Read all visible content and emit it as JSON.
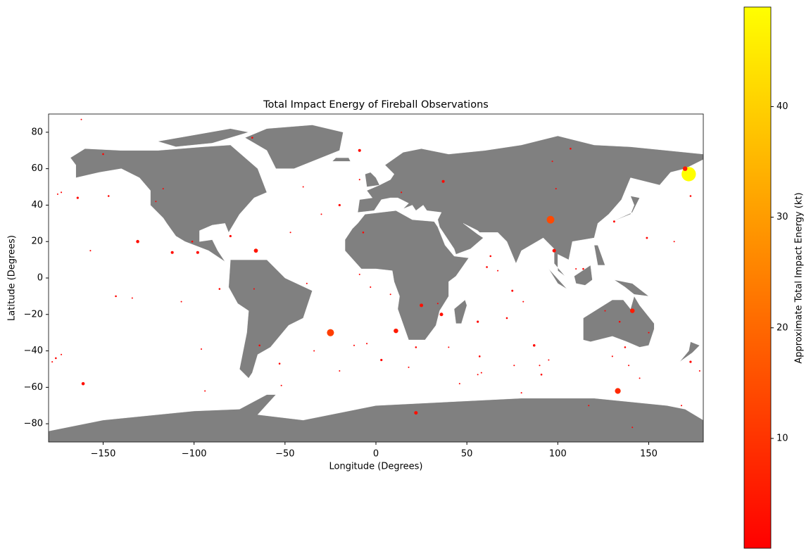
{
  "chart_data": {
    "type": "scatter",
    "title": "Total Impact Energy of Fireball Observations",
    "xlabel": "Longitude (Degrees)",
    "ylabel": "Latitude (Degrees)",
    "xlim": [
      -180,
      180
    ],
    "ylim": [
      -90,
      90
    ],
    "xticks": [
      {
        "value": -150,
        "label": "−150"
      },
      {
        "value": -100,
        "label": "−100"
      },
      {
        "value": -50,
        "label": "−50"
      },
      0,
      50,
      100,
      150
    ],
    "yticks": [
      {
        "value": -80,
        "label": "−80"
      },
      {
        "value": -60,
        "label": "−60"
      },
      {
        "value": -40,
        "label": "−40"
      },
      {
        "value": -20,
        "label": "−20"
      },
      0,
      20,
      40,
      60,
      80
    ],
    "colorbar": {
      "label": "Approximate Total Impact Energy (kt)",
      "clim": [
        0.07,
        49
      ],
      "ticks": [
        10,
        20,
        30,
        40
      ],
      "colormap": [
        "#ff0000",
        "#ffff00"
      ]
    },
    "x": [
      172,
      96,
      -25,
      133,
      170,
      141,
      11,
      -66,
      22,
      25,
      36,
      98,
      -161,
      -131,
      -98,
      -112,
      -9,
      37,
      87,
      -80,
      -20,
      173,
      -164,
      -68,
      -117,
      -150,
      -147,
      -176,
      -178,
      -173,
      -175,
      -173,
      -157,
      -143,
      -134,
      -96,
      -94,
      -86,
      -64,
      -53,
      -52,
      -38,
      -34,
      -20,
      -12,
      -5,
      3,
      -7,
      -9,
      -9,
      -3,
      8,
      14,
      22,
      18,
      40,
      46,
      56,
      57,
      58,
      61,
      63,
      67,
      72,
      75,
      76,
      80,
      81,
      90,
      91,
      95,
      97,
      99,
      107,
      110,
      114,
      117,
      126,
      130,
      131,
      134,
      137,
      139,
      141,
      145,
      149,
      150,
      164,
      168,
      173,
      178,
      -162,
      -107,
      -121,
      -101,
      -67,
      -47,
      -40,
      -30,
      34,
      56
    ],
    "y": [
      57,
      32,
      -30,
      -62,
      60,
      -18,
      -29,
      15,
      -74,
      -15,
      -20,
      15,
      -58,
      20,
      14,
      14,
      70,
      53,
      -37,
      23,
      40,
      -46,
      44,
      77,
      49,
      68,
      45,
      -44,
      -46,
      -42,
      46,
      47,
      15,
      -10,
      -11,
      -39,
      -62,
      -6,
      -37,
      -47,
      -59,
      -3,
      -40,
      -51,
      -37,
      -36,
      -45,
      25,
      54,
      2,
      -5,
      -9,
      47,
      -38,
      -49,
      -38,
      -58,
      -24,
      -43,
      -52,
      6,
      12,
      4,
      -22,
      -7,
      -48,
      -63,
      -13,
      -48,
      -53,
      -45,
      64,
      49,
      71,
      5,
      5,
      -70,
      -18,
      -43,
      31,
      -24,
      -38,
      -48,
      -82,
      -55,
      22,
      -30,
      20,
      -70,
      45,
      -51,
      87,
      -13,
      42,
      20,
      -6,
      25,
      50,
      35,
      -14,
      -53
    ],
    "values": [
      49,
      14,
      12,
      8,
      5,
      5,
      5,
      4,
      3,
      3,
      3,
      3,
      2.5,
      2.5,
      2,
      2,
      2,
      2,
      1.5,
      1.2,
      1.2,
      1.2,
      1.2,
      0.8,
      0.3,
      0.8,
      0.8,
      0.8,
      0.5,
      0.5,
      0.5,
      0.5,
      0.5,
      0.8,
      0.3,
      0.5,
      0.5,
      0.8,
      0.8,
      0.8,
      0.5,
      0.5,
      0.3,
      0.3,
      0.5,
      0.5,
      1.2,
      0.8,
      0.5,
      0.3,
      0.5,
      0.3,
      0.5,
      0.8,
      0.5,
      0.3,
      0.3,
      1.2,
      0.8,
      0.5,
      0.8,
      0.8,
      0.5,
      0.8,
      1,
      0.5,
      0.5,
      0.3,
      0.5,
      0.8,
      0.3,
      0.3,
      0.5,
      0.8,
      0.5,
      0.8,
      0.5,
      0.3,
      0.5,
      1,
      0.8,
      0.8,
      0.5,
      0.3,
      0.3,
      1,
      0.5,
      0.3,
      0.5,
      0.8,
      0.5,
      0.3,
      0.3,
      0.3,
      0.8,
      0.5,
      0.3,
      0.3,
      0.3,
      0.5,
      0.3
    ]
  }
}
